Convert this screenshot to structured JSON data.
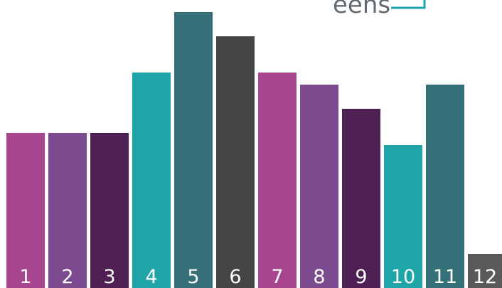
{
  "chart_data": {
    "type": "bar",
    "title": "",
    "xlabel": "",
    "ylabel": "",
    "categories": [
      "1",
      "2",
      "3",
      "4",
      "5",
      "6",
      "7",
      "8",
      "9",
      "10",
      "11",
      "12"
    ],
    "values": [
      218,
      218,
      218,
      303,
      388,
      354,
      303,
      286,
      252,
      201,
      286,
      48
    ],
    "ylim": [
      0,
      405
    ],
    "grid": false,
    "legend": "none",
    "bar_colors": [
      "#a7468f",
      "#7b4a8f",
      "#4f2053",
      "#1fa5a8",
      "#356f77",
      "#434547",
      "#a7468f",
      "#7b4a8f",
      "#4f2053",
      "#1fa5a8",
      "#356f77",
      "#5a5a5a"
    ],
    "label_color": "#ffffff"
  },
  "header": {
    "text": "eens",
    "color": "#606a70",
    "accent": "#1fa5a8"
  }
}
